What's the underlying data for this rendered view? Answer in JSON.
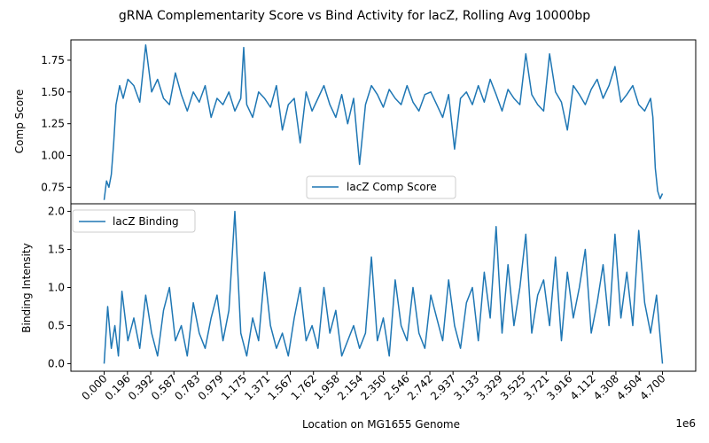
{
  "chart_data": {
    "type": "line",
    "title": "gRNA Complementarity Score vs Bind Activity for lacZ, Rolling Avg 10000bp",
    "xlabel": "Location on MG1655 Genome",
    "x_offset_text": "1e6",
    "x_range": [
      0,
      4700000
    ],
    "xlim": [
      -280000,
      4980000
    ],
    "x_tick_values": [
      0,
      196000,
      392000,
      587000,
      783000,
      979000,
      1175000,
      1371000,
      1567000,
      1762000,
      1958000,
      2154000,
      2350000,
      2546000,
      2742000,
      2937000,
      3133000,
      3329000,
      3525000,
      3721000,
      3916000,
      4112000,
      4308000,
      4504000,
      4700000
    ],
    "x_tick_labels": [
      "0.000",
      "0.196",
      "0.392",
      "0.587",
      "0.783",
      "0.979",
      "1.175",
      "1.371",
      "1.567",
      "1.762",
      "1.958",
      "2.154",
      "2.350",
      "2.546",
      "2.742",
      "2.937",
      "3.133",
      "3.329",
      "3.525",
      "3.721",
      "3.916",
      "4.112",
      "4.308",
      "4.504",
      "4.700"
    ],
    "color": "#1f77b4",
    "panels": [
      {
        "ylabel": "Comp Score",
        "ylim": [
          0.62,
          1.91
        ],
        "y_ticks": [
          0.75,
          1.0,
          1.25,
          1.5,
          1.75
        ],
        "y_tick_labels": [
          "0.75",
          "1.00",
          "1.25",
          "1.50",
          "1.75"
        ],
        "legend": "lower center",
        "series": [
          {
            "name": "lacZ Comp Score",
            "x": [
              0,
              20000,
              40000,
              60000,
              80000,
              100000,
              130000,
              160000,
              200000,
              250000,
              300000,
              350000,
              400000,
              450000,
              500000,
              550000,
              600000,
              650000,
              700000,
              750000,
              800000,
              850000,
              900000,
              950000,
              1000000,
              1050000,
              1100000,
              1150000,
              1175000,
              1200000,
              1250000,
              1300000,
              1350000,
              1400000,
              1450000,
              1500000,
              1550000,
              1600000,
              1650000,
              1700000,
              1750000,
              1800000,
              1850000,
              1900000,
              1950000,
              2000000,
              2050000,
              2100000,
              2150000,
              2200000,
              2250000,
              2300000,
              2350000,
              2400000,
              2450000,
              2500000,
              2550000,
              2600000,
              2650000,
              2700000,
              2750000,
              2800000,
              2850000,
              2900000,
              2950000,
              3000000,
              3050000,
              3100000,
              3150000,
              3200000,
              3250000,
              3300000,
              3350000,
              3400000,
              3450000,
              3500000,
              3550000,
              3600000,
              3650000,
              3700000,
              3750000,
              3800000,
              3850000,
              3900000,
              3950000,
              4000000,
              4050000,
              4100000,
              4150000,
              4200000,
              4250000,
              4300000,
              4350000,
              4400000,
              4450000,
              4500000,
              4550000,
              4600000,
              4620000,
              4640000,
              4660000,
              4680000,
              4700000
            ],
            "y": [
              0.65,
              0.8,
              0.75,
              0.85,
              1.1,
              1.4,
              1.55,
              1.45,
              1.6,
              1.55,
              1.42,
              1.87,
              1.5,
              1.6,
              1.45,
              1.4,
              1.65,
              1.48,
              1.35,
              1.5,
              1.42,
              1.55,
              1.3,
              1.45,
              1.4,
              1.5,
              1.35,
              1.45,
              1.85,
              1.4,
              1.3,
              1.5,
              1.45,
              1.38,
              1.55,
              1.2,
              1.4,
              1.45,
              1.1,
              1.5,
              1.35,
              1.45,
              1.55,
              1.4,
              1.3,
              1.48,
              1.25,
              1.45,
              0.93,
              1.4,
              1.55,
              1.48,
              1.38,
              1.52,
              1.45,
              1.4,
              1.55,
              1.42,
              1.35,
              1.48,
              1.5,
              1.4,
              1.3,
              1.48,
              1.05,
              1.45,
              1.5,
              1.4,
              1.55,
              1.42,
              1.6,
              1.48,
              1.35,
              1.52,
              1.45,
              1.4,
              1.8,
              1.48,
              1.4,
              1.35,
              1.8,
              1.5,
              1.42,
              1.2,
              1.55,
              1.48,
              1.4,
              1.52,
              1.6,
              1.45,
              1.55,
              1.7,
              1.42,
              1.48,
              1.55,
              1.4,
              1.35,
              1.45,
              1.3,
              0.9,
              0.72,
              0.66,
              0.7
            ]
          }
        ]
      },
      {
        "ylabel": "Binding Intensity",
        "ylim": [
          -0.1,
          2.1
        ],
        "y_ticks": [
          0.0,
          0.5,
          1.0,
          1.5,
          2.0
        ],
        "y_tick_labels": [
          "0.0",
          "0.5",
          "1.0",
          "1.5",
          "2.0"
        ],
        "legend": "upper left",
        "series": [
          {
            "name": "lacZ Binding",
            "x": [
              0,
              30000,
              60000,
              90000,
              120000,
              150000,
              200000,
              250000,
              300000,
              350000,
              400000,
              450000,
              500000,
              550000,
              600000,
              650000,
              700000,
              750000,
              800000,
              850000,
              900000,
              950000,
              1000000,
              1050000,
              1100000,
              1150000,
              1200000,
              1250000,
              1300000,
              1350000,
              1400000,
              1450000,
              1500000,
              1550000,
              1600000,
              1650000,
              1700000,
              1750000,
              1800000,
              1850000,
              1900000,
              1950000,
              2000000,
              2050000,
              2100000,
              2150000,
              2200000,
              2250000,
              2300000,
              2350000,
              2400000,
              2450000,
              2500000,
              2550000,
              2600000,
              2650000,
              2700000,
              2750000,
              2800000,
              2850000,
              2900000,
              2950000,
              3000000,
              3050000,
              3100000,
              3150000,
              3200000,
              3250000,
              3300000,
              3350000,
              3400000,
              3450000,
              3500000,
              3550000,
              3600000,
              3650000,
              3700000,
              3750000,
              3800000,
              3850000,
              3900000,
              3950000,
              4000000,
              4050000,
              4100000,
              4150000,
              4200000,
              4250000,
              4300000,
              4350000,
              4400000,
              4450000,
              4500000,
              4550000,
              4600000,
              4650000,
              4700000
            ],
            "y": [
              0.0,
              0.75,
              0.2,
              0.5,
              0.1,
              0.95,
              0.3,
              0.6,
              0.2,
              0.9,
              0.4,
              0.1,
              0.7,
              1.0,
              0.3,
              0.5,
              0.1,
              0.8,
              0.4,
              0.2,
              0.6,
              0.9,
              0.3,
              0.7,
              2.0,
              0.4,
              0.1,
              0.6,
              0.3,
              1.2,
              0.5,
              0.2,
              0.4,
              0.1,
              0.6,
              1.0,
              0.3,
              0.5,
              0.2,
              1.0,
              0.4,
              0.7,
              0.1,
              0.3,
              0.5,
              0.2,
              0.4,
              1.4,
              0.3,
              0.6,
              0.1,
              1.1,
              0.5,
              0.3,
              1.0,
              0.4,
              0.2,
              0.9,
              0.6,
              0.3,
              1.1,
              0.5,
              0.2,
              0.8,
              1.0,
              0.3,
              1.2,
              0.6,
              1.8,
              0.4,
              1.3,
              0.5,
              1.0,
              1.7,
              0.4,
              0.9,
              1.1,
              0.5,
              1.4,
              0.3,
              1.2,
              0.6,
              1.0,
              1.5,
              0.4,
              0.8,
              1.3,
              0.5,
              1.7,
              0.6,
              1.2,
              0.5,
              1.75,
              0.8,
              0.4,
              0.9,
              0.0
            ]
          }
        ]
      }
    ]
  }
}
